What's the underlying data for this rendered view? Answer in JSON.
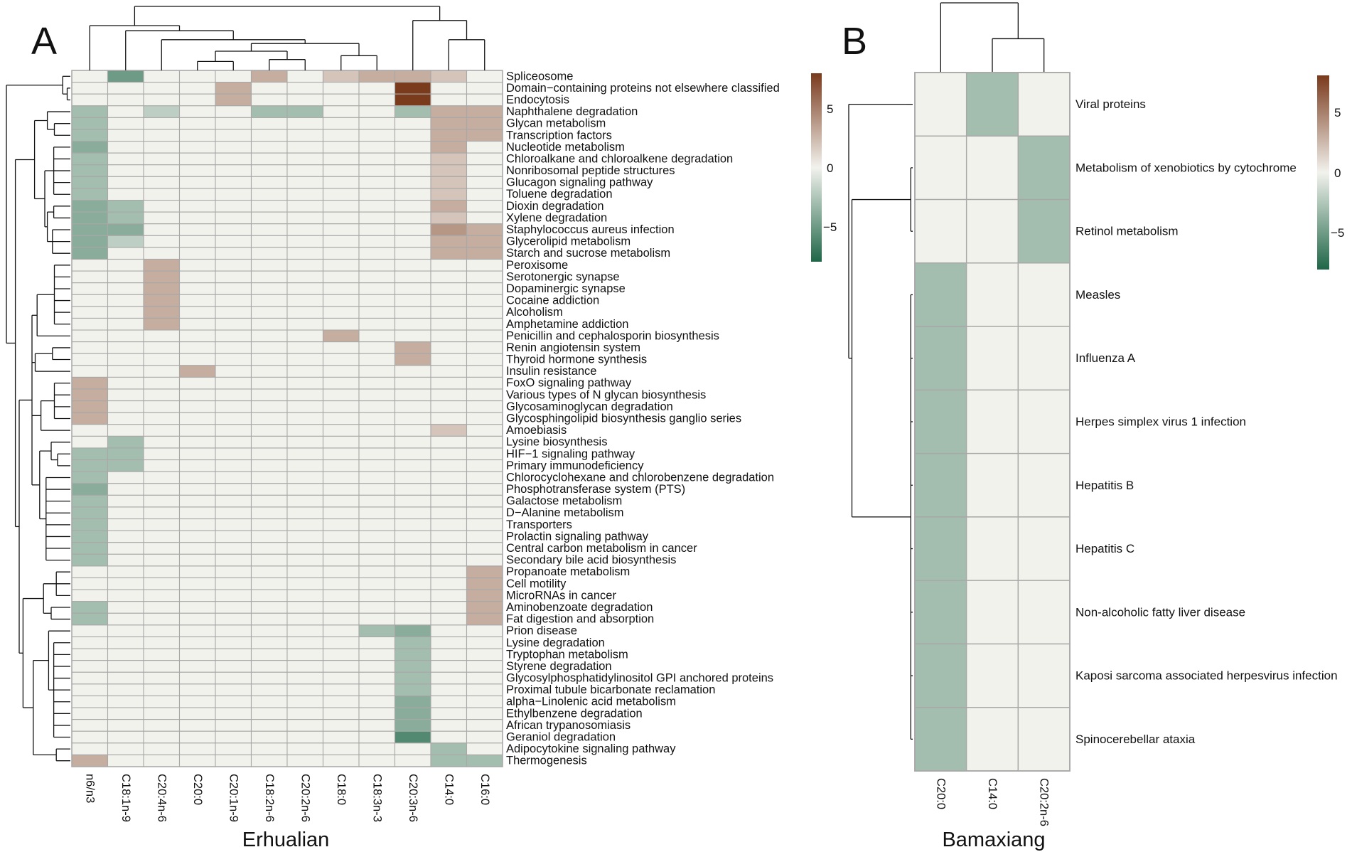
{
  "figure": {
    "panels": [
      {
        "letter": "A",
        "title": "Erhualian"
      },
      {
        "letter": "B",
        "title": "Bamaxiang"
      }
    ],
    "colorscale": {
      "low": "#1f6648",
      "mid": "#f2f2ed",
      "high": "#7a3a1c",
      "min": -8,
      "max": 8,
      "ticks": [
        {
          "value": 5,
          "label": "5"
        },
        {
          "value": 0,
          "label": "0"
        },
        {
          "value": -5,
          "label": "−5"
        }
      ]
    }
  },
  "chart_data": [
    {
      "type": "heatmap",
      "panel": "A",
      "title": "Erhualian",
      "xlabel": "Erhualian",
      "columns": [
        "n6/n3",
        "C18:1n-9",
        "C20:4n-6",
        "C20:0",
        "C20:1n-9",
        "C18:2n-6",
        "C20:2n-6",
        "C18:0",
        "C18:3n-3",
        "C20:3n-6",
        "C14:0",
        "C16:0"
      ],
      "rows": [
        "Spliceosome",
        "Domain−containing proteins not elsewhere classified",
        "Endocytosis",
        "Naphthalene degradation",
        "Glycan metabolism",
        "Transcription factors",
        "Nucleotide metabolism",
        "Chloroalkane and chloroalkene degradation",
        "Nonribosomal peptide structures",
        "Glucagon signaling pathway",
        "Toluene degradation",
        "Dioxin degradation",
        "Xylene degradation",
        "Staphylococcus aureus infection",
        "Glycerolipid metabolism",
        "Starch and sucrose metabolism",
        "Peroxisome",
        "Serotonergic synapse",
        "Dopaminergic synapse",
        "Cocaine addiction",
        "Alcoholism",
        "Amphetamine addiction",
        "Penicillin and cephalosporin biosynthesis",
        "Renin angiotensin system",
        "Thyroid hormone synthesis",
        "Insulin resistance",
        "FoxO signaling pathway",
        "Various types of N glycan biosynthesis",
        "Glycosaminoglycan degradation",
        "Glycosphingolipid biosynthesis   ganglio series",
        "Amoebiasis",
        "Lysine biosynthesis",
        "HIF−1 signaling pathway",
        "Primary immunodeficiency",
        "Chlorocyclohexane and chlorobenzene degradation",
        "Phosphotransferase system (PTS)",
        "Galactose metabolism",
        "D−Alanine metabolism",
        "Transporters",
        "Prolactin signaling pathway",
        "Central carbon metabolism in cancer",
        "Secondary bile acid biosynthesis",
        "Propanoate metabolism",
        "Cell motility",
        "MicroRNAs in cancer",
        "Aminobenzoate degradation",
        "Fat digestion and absorption",
        "Prion disease",
        "Lysine degradation",
        "Tryptophan metabolism",
        "Styrene degradation",
        "Glycosylphosphatidylinositol  GPI  anchored proteins",
        "Proximal tubule bicarbonate reclamation",
        "alpha−Linolenic acid metabolism",
        "Ethylbenzene degradation",
        "African trypanosomiasis",
        "Geraniol degradation",
        "Adipocytokine signaling pathway",
        "Thermogenesis"
      ],
      "values": [
        [
          0,
          -5,
          0,
          0,
          0,
          3,
          0,
          2,
          3,
          3,
          2,
          0
        ],
        [
          0,
          0,
          0,
          0,
          3,
          0,
          0,
          0,
          0,
          8,
          0,
          0
        ],
        [
          0,
          0,
          0,
          0,
          3,
          0,
          0,
          0,
          0,
          8,
          0,
          0
        ],
        [
          -3,
          0,
          -2,
          0,
          0,
          -3,
          -3,
          0,
          0,
          -3,
          3,
          3
        ],
        [
          -3,
          0,
          0,
          0,
          0,
          0,
          0,
          0,
          0,
          0,
          3,
          3
        ],
        [
          -3,
          0,
          0,
          0,
          0,
          0,
          0,
          0,
          0,
          0,
          3,
          3
        ],
        [
          -4,
          0,
          0,
          0,
          0,
          0,
          0,
          0,
          0,
          0,
          3,
          0
        ],
        [
          -3,
          0,
          0,
          0,
          0,
          0,
          0,
          0,
          0,
          0,
          2,
          0
        ],
        [
          -3,
          0,
          0,
          0,
          0,
          0,
          0,
          0,
          0,
          0,
          2,
          0
        ],
        [
          -3,
          0,
          0,
          0,
          0,
          0,
          0,
          0,
          0,
          0,
          2,
          0
        ],
        [
          -3,
          0,
          0,
          0,
          0,
          0,
          0,
          0,
          0,
          0,
          2,
          0
        ],
        [
          -4,
          -3,
          0,
          0,
          0,
          0,
          0,
          0,
          0,
          0,
          3,
          0
        ],
        [
          -4,
          -3,
          0,
          0,
          0,
          0,
          0,
          0,
          0,
          0,
          2,
          0
        ],
        [
          -4,
          -4,
          0,
          0,
          0,
          0,
          0,
          0,
          0,
          0,
          4,
          3
        ],
        [
          -4,
          -2,
          0,
          0,
          0,
          0,
          0,
          0,
          0,
          0,
          3,
          3
        ],
        [
          -4,
          0,
          0,
          0,
          0,
          0,
          0,
          0,
          0,
          0,
          3,
          3
        ],
        [
          0,
          0,
          3,
          0,
          0,
          0,
          0,
          0,
          0,
          0,
          0,
          0
        ],
        [
          0,
          0,
          3,
          0,
          0,
          0,
          0,
          0,
          0,
          0,
          0,
          0
        ],
        [
          0,
          0,
          3,
          0,
          0,
          0,
          0,
          0,
          0,
          0,
          0,
          0
        ],
        [
          0,
          0,
          3,
          0,
          0,
          0,
          0,
          0,
          0,
          0,
          0,
          0
        ],
        [
          0,
          0,
          3,
          0,
          0,
          0,
          0,
          0,
          0,
          0,
          0,
          0
        ],
        [
          0,
          0,
          3,
          0,
          0,
          0,
          0,
          0,
          0,
          0,
          0,
          0
        ],
        [
          0,
          0,
          0,
          0,
          0,
          0,
          0,
          3,
          0,
          0,
          0,
          0
        ],
        [
          0,
          0,
          0,
          0,
          0,
          0,
          0,
          0,
          0,
          3,
          0,
          0
        ],
        [
          0,
          0,
          0,
          0,
          0,
          0,
          0,
          0,
          0,
          3,
          0,
          0
        ],
        [
          0,
          0,
          0,
          3,
          0,
          0,
          0,
          0,
          0,
          0,
          0,
          0
        ],
        [
          3,
          0,
          0,
          0,
          0,
          0,
          0,
          0,
          0,
          0,
          0,
          0
        ],
        [
          3,
          0,
          0,
          0,
          0,
          0,
          0,
          0,
          0,
          0,
          0,
          0
        ],
        [
          3,
          0,
          0,
          0,
          0,
          0,
          0,
          0,
          0,
          0,
          0,
          0
        ],
        [
          3,
          0,
          0,
          0,
          0,
          0,
          0,
          0,
          0,
          0,
          0,
          0
        ],
        [
          0,
          0,
          0,
          0,
          0,
          0,
          0,
          0,
          0,
          0,
          2,
          0
        ],
        [
          0,
          -3,
          0,
          0,
          0,
          0,
          0,
          0,
          0,
          0,
          0,
          0
        ],
        [
          -3,
          -3,
          0,
          0,
          0,
          0,
          0,
          0,
          0,
          0,
          0,
          0
        ],
        [
          -3,
          -3,
          0,
          0,
          0,
          0,
          0,
          0,
          0,
          0,
          0,
          0
        ],
        [
          -3,
          0,
          0,
          0,
          0,
          0,
          0,
          0,
          0,
          0,
          0,
          0
        ],
        [
          -4,
          0,
          0,
          0,
          0,
          0,
          0,
          0,
          0,
          0,
          0,
          0
        ],
        [
          -3,
          0,
          0,
          0,
          0,
          0,
          0,
          0,
          0,
          0,
          0,
          0
        ],
        [
          -3,
          0,
          0,
          0,
          0,
          0,
          0,
          0,
          0,
          0,
          0,
          0
        ],
        [
          -3,
          0,
          0,
          0,
          0,
          0,
          0,
          0,
          0,
          0,
          0,
          0
        ],
        [
          -3,
          0,
          0,
          0,
          0,
          0,
          0,
          0,
          0,
          0,
          0,
          0
        ],
        [
          -3,
          0,
          0,
          0,
          0,
          0,
          0,
          0,
          0,
          0,
          0,
          0
        ],
        [
          -3,
          0,
          0,
          0,
          0,
          0,
          0,
          0,
          0,
          0,
          0,
          0
        ],
        [
          0,
          0,
          0,
          0,
          0,
          0,
          0,
          0,
          0,
          0,
          0,
          3
        ],
        [
          0,
          0,
          0,
          0,
          0,
          0,
          0,
          0,
          0,
          0,
          0,
          3
        ],
        [
          0,
          0,
          0,
          0,
          0,
          0,
          0,
          0,
          0,
          0,
          0,
          3
        ],
        [
          -3,
          0,
          0,
          0,
          0,
          0,
          0,
          0,
          0,
          0,
          0,
          3
        ],
        [
          -3,
          0,
          0,
          0,
          0,
          0,
          0,
          0,
          0,
          0,
          0,
          3
        ],
        [
          0,
          0,
          0,
          0,
          0,
          0,
          0,
          0,
          -3,
          -4,
          0,
          0
        ],
        [
          0,
          0,
          0,
          0,
          0,
          0,
          0,
          0,
          0,
          -3,
          0,
          0
        ],
        [
          0,
          0,
          0,
          0,
          0,
          0,
          0,
          0,
          0,
          -3,
          0,
          0
        ],
        [
          0,
          0,
          0,
          0,
          0,
          0,
          0,
          0,
          0,
          -3,
          0,
          0
        ],
        [
          0,
          0,
          0,
          0,
          0,
          0,
          0,
          0,
          0,
          -3,
          0,
          0
        ],
        [
          0,
          0,
          0,
          0,
          0,
          0,
          0,
          0,
          0,
          -3,
          0,
          0
        ],
        [
          0,
          0,
          0,
          0,
          0,
          0,
          0,
          0,
          0,
          -4,
          0,
          0
        ],
        [
          0,
          0,
          0,
          0,
          0,
          0,
          0,
          0,
          0,
          -4,
          0,
          0
        ],
        [
          0,
          0,
          0,
          0,
          0,
          0,
          0,
          0,
          0,
          -4,
          0,
          0
        ],
        [
          0,
          0,
          0,
          0,
          0,
          0,
          0,
          0,
          0,
          -6,
          0,
          0
        ],
        [
          0,
          0,
          0,
          0,
          0,
          0,
          0,
          0,
          0,
          0,
          -3,
          0
        ],
        [
          3,
          0,
          0,
          0,
          0,
          0,
          0,
          0,
          0,
          0,
          -3,
          -3
        ]
      ]
    },
    {
      "type": "heatmap",
      "panel": "B",
      "title": "Bamaxiang",
      "xlabel": "Bamaxiang",
      "columns": [
        "C20:0",
        "C14:0",
        "C20:2n-6"
      ],
      "rows": [
        "Viral proteins",
        "Metabolism of xenobiotics by cytochrome",
        "Retinol metabolism",
        "Measles",
        "Influenza A",
        "Herpes simplex virus 1 infection",
        "Hepatitis B",
        "Hepatitis C",
        "Non-alcoholic fatty liver disease",
        "Kaposi sarcoma associated herpesvirus infection",
        "Spinocerebellar ataxia"
      ],
      "values": [
        [
          0,
          -3,
          0
        ],
        [
          0,
          0,
          -3
        ],
        [
          0,
          0,
          -3
        ],
        [
          -3,
          0,
          0
        ],
        [
          -3,
          0,
          0
        ],
        [
          -3,
          0,
          0
        ],
        [
          -3,
          0,
          0
        ],
        [
          -3,
          0,
          0
        ],
        [
          -3,
          0,
          0
        ],
        [
          -3,
          0,
          0
        ],
        [
          -3,
          0,
          0
        ]
      ]
    }
  ]
}
